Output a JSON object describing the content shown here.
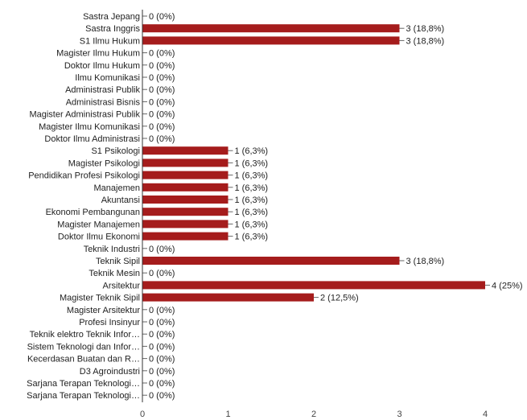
{
  "chart_data": {
    "type": "bar",
    "orientation": "horizontal",
    "bar_color": "#A51C1C",
    "categories": [
      "Sastra Jepang",
      "Sastra Inggris",
      "S1 Ilmu Hukum",
      "Magister Ilmu Hukum",
      "Doktor Ilmu Hukum",
      "Ilmu Komunikasi",
      "Administrasi Publik",
      "Administrasi Bisnis",
      "Magister Administrasi Publik",
      "Magister Ilmu Komunikasi",
      "Doktor Ilmu Administrasi",
      "S1 Psikologi",
      "Magister Psikologi",
      "Pendidikan Profesi Psikologi",
      "Manajemen",
      "Akuntansi",
      "Ekonomi Pembangunan",
      "Magister Manajemen",
      "Doktor Ilmu Ekonomi",
      "Teknik Industri",
      "Teknik Sipil",
      "Teknik Mesin",
      "Arsitektur",
      "Magister Teknik Sipil",
      "Magister Arsitektur",
      "Profesi Insinyur",
      "Teknik elektro Teknik Infor…",
      "Sistem Teknologi dan Infor…",
      "Kecerdasan Buatan dan R…",
      "D3 Agroindustri",
      "Sarjana Terapan Teknologi…",
      "Sarjana Terapan Teknologi…"
    ],
    "values": [
      0,
      3,
      3,
      0,
      0,
      0,
      0,
      0,
      0,
      0,
      0,
      1,
      1,
      1,
      1,
      1,
      1,
      1,
      1,
      0,
      3,
      0,
      4,
      2,
      0,
      0,
      0,
      0,
      0,
      0,
      0,
      0
    ],
    "value_labels": [
      "0 (0%)",
      "3 (18,8%)",
      "3 (18,8%)",
      "0 (0%)",
      "0 (0%)",
      "0 (0%)",
      "0 (0%)",
      "0 (0%)",
      "0 (0%)",
      "0 (0%)",
      "0 (0%)",
      "1 (6,3%)",
      "1 (6,3%)",
      "1 (6,3%)",
      "1 (6,3%)",
      "1 (6,3%)",
      "1 (6,3%)",
      "1 (6,3%)",
      "1 (6,3%)",
      "0 (0%)",
      "3 (18,8%)",
      "0 (0%)",
      "4 (25%)",
      "2 (12,5%)",
      "0 (0%)",
      "0 (0%)",
      "0 (0%)",
      "0 (0%)",
      "0 (0%)",
      "0 (0%)",
      "0 (0%)",
      "0 (0%)"
    ],
    "xticks": [
      0,
      1,
      2,
      3,
      4
    ],
    "xlim": [
      0,
      4
    ],
    "title": "",
    "xlabel": "",
    "ylabel": "",
    "grid": false,
    "legend": "none"
  }
}
